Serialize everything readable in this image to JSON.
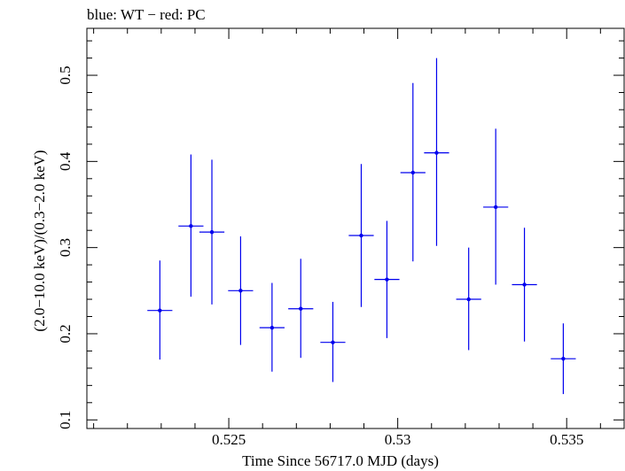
{
  "chart_data": {
    "type": "scatter",
    "title": "blue: WT − red: PC",
    "xlabel": "Time Since 56717.0 MJD (days)",
    "ylabel": "(2.0−10.0 keV)/(0.3−2.0 keV)",
    "xlim": [
      0.5208,
      0.5367
    ],
    "ylim": [
      0.09,
      0.5545
    ],
    "x_ticks": [
      0.525,
      0.53,
      0.535
    ],
    "x_tick_labels": [
      "0.525",
      "0.53",
      "0.535"
    ],
    "y_ticks": [
      0.1,
      0.2,
      0.3,
      0.4,
      0.5
    ],
    "y_tick_labels": [
      "0.1",
      "0.2",
      "0.3",
      "0.4",
      "0.5"
    ],
    "grid": false,
    "series": [
      {
        "color": "#0000ee",
        "points": [
          {
            "x": 0.52296,
            "y": 0.227,
            "xerr": 0.00037,
            "ylo": 0.17,
            "yhi": 0.285
          },
          {
            "x": 0.52388,
            "y": 0.325,
            "xerr": 0.00037,
            "ylo": 0.243,
            "yhi": 0.408
          },
          {
            "x": 0.5245,
            "y": 0.318,
            "xerr": 0.00037,
            "ylo": 0.234,
            "yhi": 0.402
          },
          {
            "x": 0.52535,
            "y": 0.25,
            "xerr": 0.00037,
            "ylo": 0.187,
            "yhi": 0.313
          },
          {
            "x": 0.52628,
            "y": 0.207,
            "xerr": 0.00037,
            "ylo": 0.156,
            "yhi": 0.259
          },
          {
            "x": 0.52713,
            "y": 0.229,
            "xerr": 0.00037,
            "ylo": 0.172,
            "yhi": 0.287
          },
          {
            "x": 0.52808,
            "y": 0.19,
            "xerr": 0.00037,
            "ylo": 0.144,
            "yhi": 0.237
          },
          {
            "x": 0.52892,
            "y": 0.314,
            "xerr": 0.00037,
            "ylo": 0.231,
            "yhi": 0.397
          },
          {
            "x": 0.52968,
            "y": 0.263,
            "xerr": 0.00037,
            "ylo": 0.195,
            "yhi": 0.331
          },
          {
            "x": 0.53045,
            "y": 0.387,
            "xerr": 0.00037,
            "ylo": 0.284,
            "yhi": 0.491
          },
          {
            "x": 0.53115,
            "y": 0.41,
            "xerr": 0.00037,
            "ylo": 0.302,
            "yhi": 0.52
          },
          {
            "x": 0.5321,
            "y": 0.24,
            "xerr": 0.00037,
            "ylo": 0.181,
            "yhi": 0.3
          },
          {
            "x": 0.5329,
            "y": 0.347,
            "xerr": 0.00037,
            "ylo": 0.257,
            "yhi": 0.438
          },
          {
            "x": 0.53375,
            "y": 0.257,
            "xerr": 0.00037,
            "ylo": 0.191,
            "yhi": 0.323
          },
          {
            "x": 0.5349,
            "y": 0.171,
            "xerr": 0.00037,
            "ylo": 0.13,
            "yhi": 0.212
          }
        ]
      }
    ]
  }
}
